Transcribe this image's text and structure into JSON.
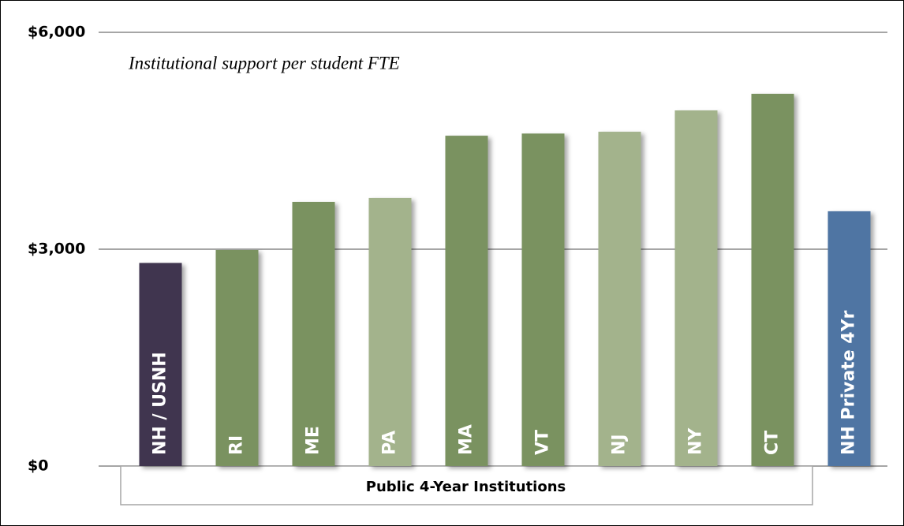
{
  "chart_data": {
    "type": "bar",
    "annotation": "Institutional support per student FTE",
    "group_label": "Public 4-Year Institutions",
    "categories": [
      "NH / USNH",
      "RI",
      "ME",
      "PA",
      "MA",
      "VT",
      "NJ",
      "NY",
      "CT",
      "NH Private 4Yr"
    ],
    "values": [
      2810,
      2990,
      3655,
      3710,
      4570,
      4600,
      4625,
      4920,
      5150,
      3525
    ],
    "colors": [
      "#3f3650",
      "#7a9260",
      "#7a9260",
      "#a3b38c",
      "#7a9260",
      "#7a9260",
      "#a3b38c",
      "#a3b38c",
      "#7a9260",
      "#4f74a3"
    ],
    "ylim": [
      0,
      6000
    ],
    "yticks": [
      {
        "value": 0,
        "label": "$0"
      },
      {
        "value": 3000,
        "label": "$3,000"
      },
      {
        "value": 6000,
        "label": "$6,000"
      }
    ],
    "grid": true
  }
}
